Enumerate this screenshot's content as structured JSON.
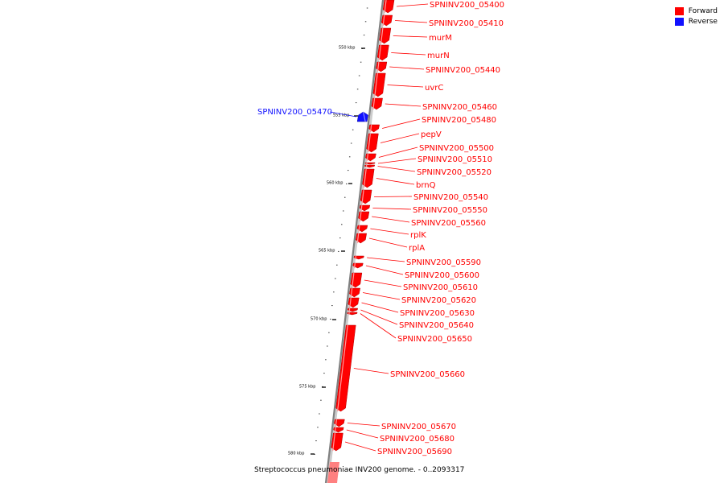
{
  "legend": {
    "forward_label": "Forward",
    "reverse_label": "Reverse",
    "forward_color": "#ff0000",
    "reverse_color": "#1111ff"
  },
  "footer": "Streptococcus pneumoniae INV200 genome. - 0..2093317",
  "kbp_ticks": [
    "550 kbp",
    "555 kbp",
    "560 kbp",
    "565 kbp",
    "570 kbp",
    "575 kbp",
    "580 kbp"
  ],
  "genes": [
    {
      "name": "SPNINV200_05400",
      "strand": "forward"
    },
    {
      "name": "SPNINV200_05410",
      "strand": "forward"
    },
    {
      "name": "murM",
      "strand": "forward"
    },
    {
      "name": "murN",
      "strand": "forward"
    },
    {
      "name": "SPNINV200_05440",
      "strand": "forward"
    },
    {
      "name": "uvrC",
      "strand": "forward"
    },
    {
      "name": "SPNINV200_05460",
      "strand": "forward"
    },
    {
      "name": "SPNINV200_05470",
      "strand": "reverse"
    },
    {
      "name": "SPNINV200_05480",
      "strand": "forward"
    },
    {
      "name": "pepV",
      "strand": "forward"
    },
    {
      "name": "SPNINV200_05500",
      "strand": "forward"
    },
    {
      "name": "SPNINV200_05510",
      "strand": "forward"
    },
    {
      "name": "SPNINV200_05520",
      "strand": "forward"
    },
    {
      "name": "brnQ",
      "strand": "forward"
    },
    {
      "name": "SPNINV200_05540",
      "strand": "forward"
    },
    {
      "name": "SPNINV200_05550",
      "strand": "forward"
    },
    {
      "name": "SPNINV200_05560",
      "strand": "forward"
    },
    {
      "name": "rplK",
      "strand": "forward"
    },
    {
      "name": "rplA",
      "strand": "forward"
    },
    {
      "name": "SPNINV200_05590",
      "strand": "forward"
    },
    {
      "name": "SPNINV200_05600",
      "strand": "forward"
    },
    {
      "name": "SPNINV200_05610",
      "strand": "forward"
    },
    {
      "name": "SPNINV200_05620",
      "strand": "forward"
    },
    {
      "name": "SPNINV200_05630",
      "strand": "forward"
    },
    {
      "name": "SPNINV200_05640",
      "strand": "forward"
    },
    {
      "name": "SPNINV200_05650",
      "strand": "forward"
    },
    {
      "name": "SPNINV200_05660",
      "strand": "forward"
    },
    {
      "name": "SPNINV200_05670",
      "strand": "forward"
    },
    {
      "name": "SPNINV200_05680",
      "strand": "forward"
    },
    {
      "name": "SPNINV200_05690",
      "strand": "forward"
    }
  ]
}
